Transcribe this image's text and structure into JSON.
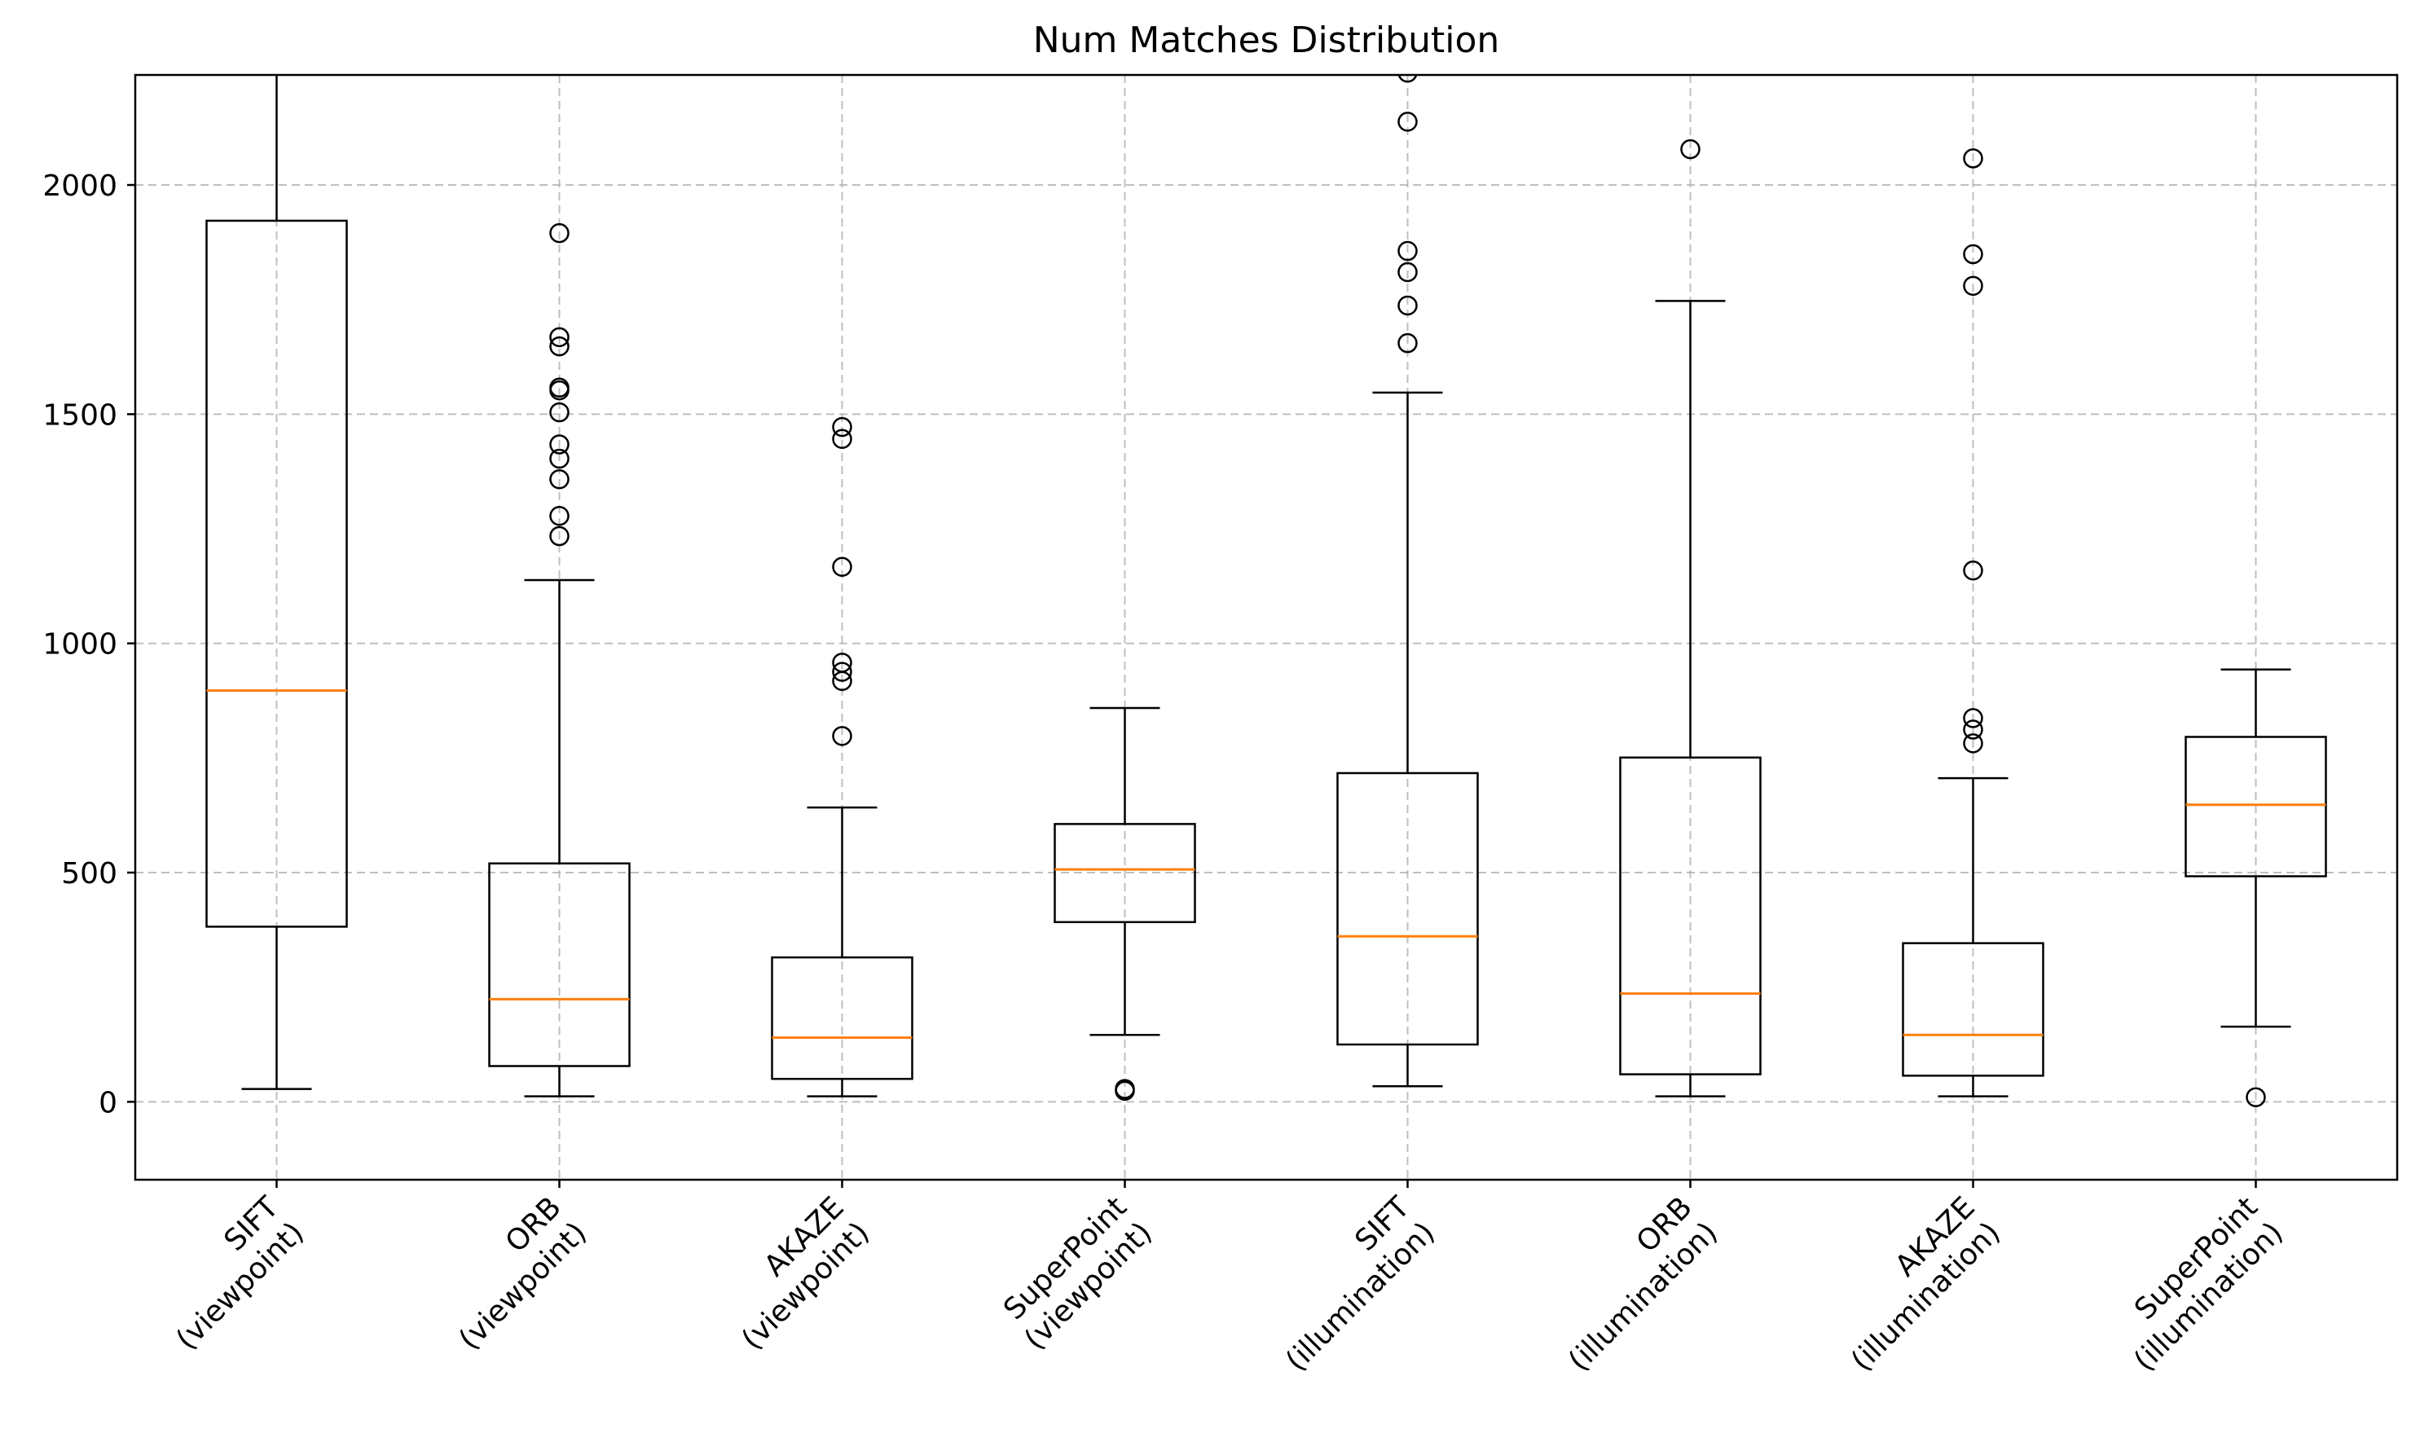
{
  "chart_data": {
    "type": "boxplot",
    "title": "Num Matches Distribution",
    "xlabel": "",
    "ylabel": "",
    "ylim": [
      -170,
      2240
    ],
    "yticks": [
      0,
      500,
      1000,
      1500,
      2000
    ],
    "grid": true,
    "categories": [
      [
        "SIFT",
        "(viewpoint)"
      ],
      [
        "ORB",
        "(viewpoint)"
      ],
      [
        "AKAZE",
        "(viewpoint)"
      ],
      [
        "SuperPoint",
        "(viewpoint)"
      ],
      [
        "SIFT",
        "(illumination)"
      ],
      [
        "ORB",
        "(illumination)"
      ],
      [
        "AKAZE",
        "(illumination)"
      ],
      [
        "SuperPoint",
        "(illumination)"
      ]
    ],
    "boxes": [
      {
        "whisker_low": 28,
        "q1": 382,
        "median": 897,
        "q3": 1922,
        "whisker_high": 2400,
        "fliers": []
      },
      {
        "whisker_low": 12,
        "q1": 78,
        "median": 224,
        "q3": 520,
        "whisker_high": 1138,
        "fliers": [
          1234,
          1278,
          1358,
          1403,
          1434,
          1504,
          1552,
          1558,
          1648,
          1668,
          1895
        ]
      },
      {
        "whisker_low": 12,
        "q1": 50,
        "median": 140,
        "q3": 315,
        "whisker_high": 642,
        "fliers": [
          798,
          918,
          938,
          958,
          1167,
          1446,
          1472
        ]
      },
      {
        "whisker_low": 146,
        "q1": 392,
        "median": 507,
        "q3": 606,
        "whisker_high": 859,
        "fliers": [
          24,
          28
        ]
      },
      {
        "whisker_low": 34,
        "q1": 125,
        "median": 361,
        "q3": 717,
        "whisker_high": 1547,
        "fliers": [
          1655,
          1737,
          1810,
          1856,
          2138,
          2245
        ]
      },
      {
        "whisker_low": 12,
        "q1": 60,
        "median": 236,
        "q3": 751,
        "whisker_high": 1747,
        "fliers": [
          2078
        ]
      },
      {
        "whisker_low": 12,
        "q1": 57,
        "median": 146,
        "q3": 346,
        "whisker_high": 706,
        "fliers": [
          782,
          812,
          837,
          1159,
          1780,
          1849,
          2058
        ]
      },
      {
        "whisker_low": 164,
        "q1": 492,
        "median": 648,
        "q3": 796,
        "whisker_high": 943,
        "fliers": [
          10
        ]
      }
    ],
    "colors": {
      "box": "#000000",
      "median": "#ff7f0e",
      "grid": "#b0b0b0"
    }
  }
}
